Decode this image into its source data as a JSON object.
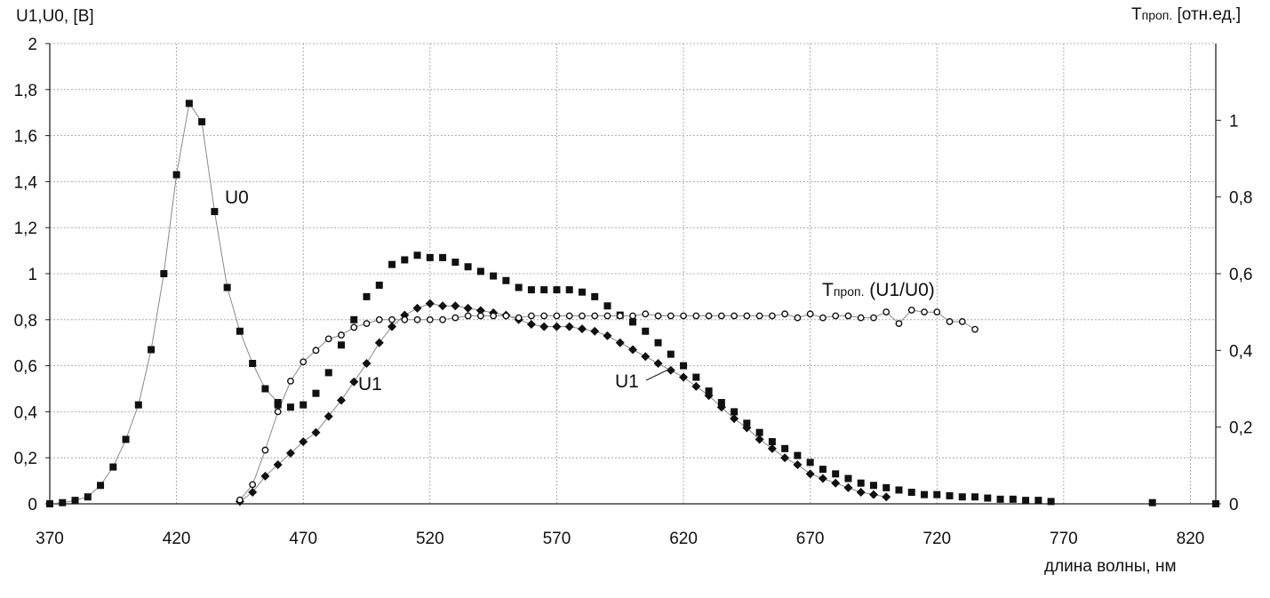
{
  "chart_data": {
    "type": "scatter",
    "title": "",
    "xlabel": "длина волны, нм",
    "ylabel_left": "U1,U0, [B]",
    "ylabel_right_main": "T",
    "ylabel_right_sub": "проп.",
    "ylabel_right_units": " [отн.ед.]",
    "xlim": [
      370,
      830
    ],
    "ylim_left": [
      0,
      2
    ],
    "ylim_right": [
      0,
      1.2
    ],
    "grid": true,
    "legend": "none",
    "x_ticks": [
      "370",
      "420",
      "470",
      "520",
      "570",
      "620",
      "670",
      "720",
      "770",
      "820"
    ],
    "y_ticks_left": [
      "0",
      "0,2",
      "0,4",
      "0,6",
      "0,8",
      "1",
      "1,2",
      "1,4",
      "1,6",
      "1,8",
      "2"
    ],
    "y_ticks_right": [
      "0",
      "0,2",
      "0,4",
      "0,6",
      "0,8",
      "1"
    ],
    "annotations": {
      "u0": "U0",
      "u1_left": "U1",
      "u1_right": "U1",
      "t_main": "T",
      "t_sub": "проп.",
      "t_rest": " (U1/U0)"
    },
    "series": [
      {
        "name": "U0",
        "axis": "left",
        "marker": "square",
        "line": true,
        "x": [
          370,
          375,
          380,
          385,
          390,
          395,
          400,
          405,
          410,
          415,
          420,
          425,
          430,
          435,
          440,
          445,
          450,
          455,
          460
        ],
        "y": [
          0,
          0.005,
          0.015,
          0.03,
          0.08,
          0.16,
          0.28,
          0.43,
          0.67,
          1.0,
          1.43,
          1.74,
          1.66,
          1.27,
          0.94,
          0.75,
          0.61,
          0.5,
          0.44
        ]
      },
      {
        "name": "U1",
        "axis": "left",
        "marker": "square",
        "line": false,
        "x": [
          460,
          465,
          470,
          475,
          480,
          485,
          490,
          495,
          500,
          505,
          510,
          515,
          520,
          525,
          530,
          535,
          540,
          545,
          550,
          555,
          560,
          565,
          570,
          575,
          580,
          585,
          590,
          595,
          600,
          605,
          610,
          615,
          620,
          625,
          630,
          635,
          640,
          645,
          650,
          655,
          660,
          665,
          670,
          675,
          680,
          685,
          690,
          695,
          700,
          705,
          710,
          715,
          720,
          725,
          730,
          735,
          740,
          745,
          750,
          755,
          760,
          765,
          805,
          830
        ],
        "y": [
          0.43,
          0.42,
          0.43,
          0.48,
          0.57,
          0.69,
          0.8,
          0.9,
          0.95,
          1.04,
          1.06,
          1.08,
          1.07,
          1.07,
          1.05,
          1.03,
          1.01,
          0.99,
          0.97,
          0.94,
          0.93,
          0.93,
          0.93,
          0.93,
          0.92,
          0.9,
          0.86,
          0.82,
          0.79,
          0.75,
          0.7,
          0.65,
          0.6,
          0.55,
          0.49,
          0.44,
          0.4,
          0.35,
          0.31,
          0.27,
          0.24,
          0.21,
          0.18,
          0.15,
          0.13,
          0.11,
          0.09,
          0.08,
          0.07,
          0.06,
          0.05,
          0.04,
          0.04,
          0.035,
          0.03,
          0.03,
          0.025,
          0.02,
          0.02,
          0.015,
          0.015,
          0.01,
          0.005,
          0
        ]
      },
      {
        "name": "U1",
        "axis": "left",
        "marker": "diamond",
        "line": true,
        "x": [
          445,
          450,
          455,
          460,
          465,
          470,
          475,
          480,
          485,
          490,
          495,
          500,
          505,
          510,
          515,
          520,
          525,
          530,
          535,
          540,
          545,
          550,
          555,
          560,
          565,
          570,
          575,
          580,
          585,
          590,
          595,
          600,
          605,
          610,
          615,
          620,
          625,
          630,
          635,
          640,
          645,
          650,
          655,
          660,
          665,
          670,
          675,
          680,
          685,
          690,
          695,
          700
        ],
        "y": [
          0.01,
          0.05,
          0.12,
          0.17,
          0.22,
          0.27,
          0.31,
          0.38,
          0.45,
          0.53,
          0.61,
          0.7,
          0.77,
          0.82,
          0.85,
          0.87,
          0.86,
          0.86,
          0.85,
          0.84,
          0.83,
          0.82,
          0.8,
          0.78,
          0.77,
          0.77,
          0.77,
          0.76,
          0.75,
          0.73,
          0.7,
          0.67,
          0.64,
          0.61,
          0.58,
          0.55,
          0.51,
          0.47,
          0.42,
          0.37,
          0.33,
          0.28,
          0.24,
          0.2,
          0.17,
          0.13,
          0.11,
          0.09,
          0.07,
          0.05,
          0.04,
          0.03
        ]
      },
      {
        "name": "Tпроп. (U1/U0)",
        "axis": "right",
        "marker": "circle",
        "line": true,
        "x": [
          445,
          450,
          455,
          460,
          465,
          470,
          475,
          480,
          485,
          490,
          495,
          500,
          505,
          510,
          515,
          520,
          525,
          530,
          535,
          540,
          545,
          550,
          555,
          560,
          565,
          570,
          575,
          580,
          585,
          590,
          595,
          600,
          605,
          610,
          615,
          620,
          625,
          630,
          635,
          640,
          645,
          650,
          655,
          660,
          665,
          670,
          675,
          680,
          685,
          690,
          695,
          700,
          705,
          710,
          715,
          720,
          725,
          730,
          735
        ],
        "y": [
          0.01,
          0.05,
          0.14,
          0.24,
          0.32,
          0.37,
          0.4,
          0.43,
          0.44,
          0.46,
          0.47,
          0.48,
          0.48,
          0.48,
          0.48,
          0.48,
          0.48,
          0.485,
          0.49,
          0.49,
          0.49,
          0.49,
          0.485,
          0.49,
          0.49,
          0.49,
          0.49,
          0.49,
          0.49,
          0.49,
          0.49,
          0.49,
          0.495,
          0.49,
          0.49,
          0.49,
          0.49,
          0.49,
          0.49,
          0.49,
          0.49,
          0.49,
          0.49,
          0.495,
          0.485,
          0.495,
          0.485,
          0.49,
          0.49,
          0.485,
          0.485,
          0.5,
          0.47,
          0.505,
          0.5,
          0.5,
          0.475,
          0.475,
          0.455
        ]
      }
    ]
  }
}
